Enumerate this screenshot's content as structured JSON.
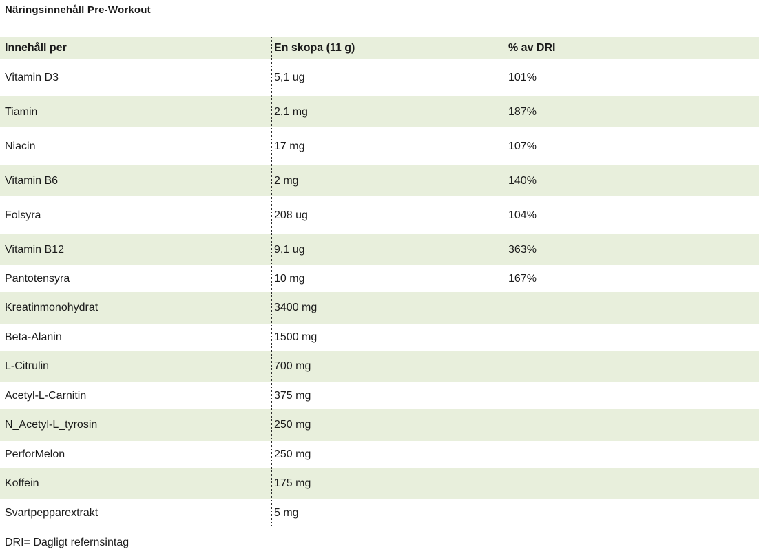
{
  "title": "Näringsinnehåll Pre-Workout",
  "table": {
    "headers": [
      "Innehåll per",
      "En skopa (11 g)",
      "% av DRI"
    ],
    "rows": [
      {
        "name": "Vitamin D3",
        "amount": "5,1 ug",
        "dri": "101%"
      },
      {
        "name": "Tiamin",
        "amount": "2,1 mg",
        "dri": "187%"
      },
      {
        "name": "Niacin",
        "amount": "17 mg",
        "dri": "107%"
      },
      {
        "name": "Vitamin B6",
        "amount": "2 mg",
        "dri": "140%"
      },
      {
        "name": "Folsyra",
        "amount": "208 ug",
        "dri": "104%"
      },
      {
        "name": "Vitamin B12",
        "amount": "9,1 ug",
        "dri": "363%"
      },
      {
        "name": "Pantotensyra",
        "amount": "10 mg",
        "dri": "167%"
      },
      {
        "name": "Kreatinmonohydrat",
        "amount": "3400 mg",
        "dri": ""
      },
      {
        "name": "Beta-Alanin",
        "amount": "1500 mg",
        "dri": ""
      },
      {
        "name": "L-Citrulin",
        "amount": "700 mg",
        "dri": ""
      },
      {
        "name": "Acetyl-L-Carnitin",
        "amount": "375 mg",
        "dri": ""
      },
      {
        "name": "N_Acetyl-L_tyrosin",
        "amount": "250 mg",
        "dri": ""
      },
      {
        "name": "PerforMelon",
        "amount": "250 mg",
        "dri": ""
      },
      {
        "name": "Koffein",
        "amount": "175 mg",
        "dri": ""
      },
      {
        "name": "Svartpepparextrakt",
        "amount": "5 mg",
        "dri": ""
      }
    ]
  },
  "footnote": "DRI= Dagligt refernsintag",
  "colors": {
    "row_shade": "#e8efdc",
    "text": "#1b1b1b",
    "divider_dash": "#2a2a2a",
    "background": "#ffffff"
  }
}
